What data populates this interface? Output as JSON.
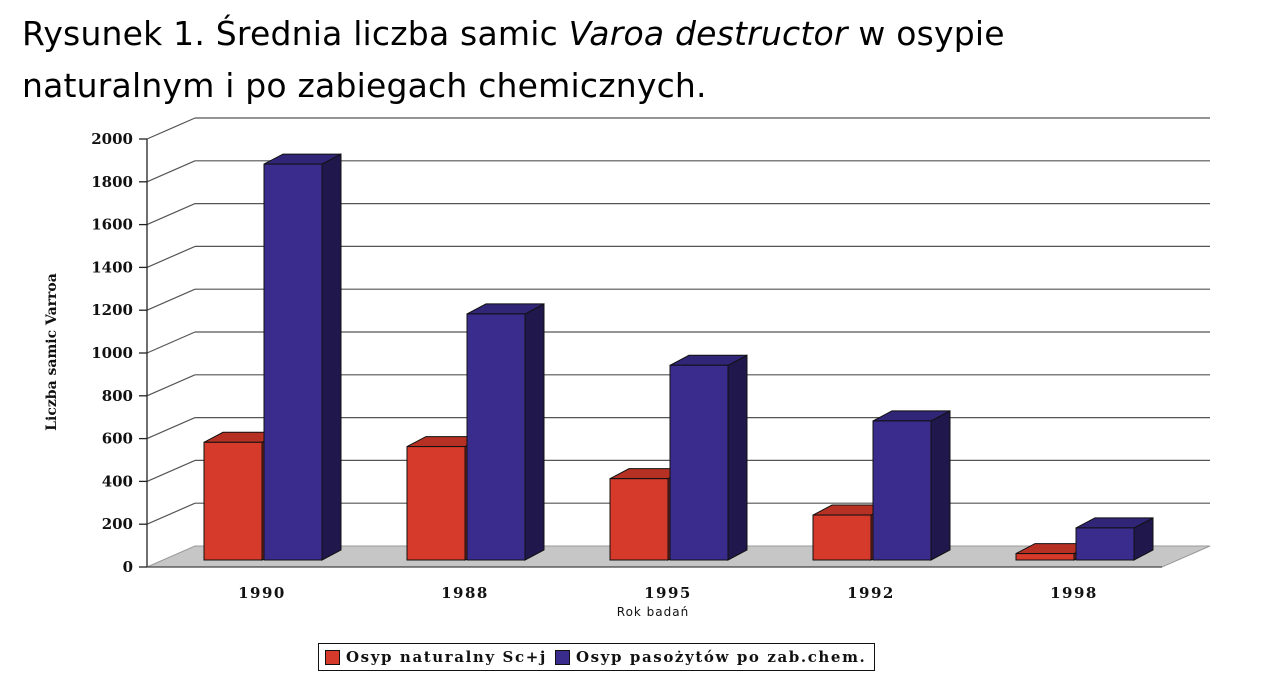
{
  "title": {
    "line1_part1": "Rysunek 1. Średnia liczba samic ",
    "line1_italic": "Varoa destructor",
    "line1_part2": " w osypie",
    "line2": "naturalnym i po zabiegach chemicznych."
  },
  "colors": {
    "natural": "#d63a2a",
    "chemical": "#3a2c8c"
  },
  "chart_data": {
    "type": "bar",
    "categories": [
      "1990",
      "1988",
      "1995",
      "1992",
      "1998"
    ],
    "series": [
      {
        "name": "Osyp naturalny Sc+j",
        "values": [
          550,
          530,
          380,
          210,
          30
        ]
      },
      {
        "name": "Osyp pasożytów po zab.chem.",
        "values": [
          1850,
          1150,
          910,
          650,
          150
        ]
      }
    ],
    "xlabel": "Rok badań",
    "ylabel": "Liczba samic Varroa",
    "ylim": [
      0,
      2000
    ],
    "yticks": [
      "0",
      "200",
      "400",
      "600",
      "800",
      "1000",
      "1200",
      "1400",
      "1600",
      "1800",
      "2000"
    ],
    "grid": true,
    "legend_position": "bottom"
  }
}
